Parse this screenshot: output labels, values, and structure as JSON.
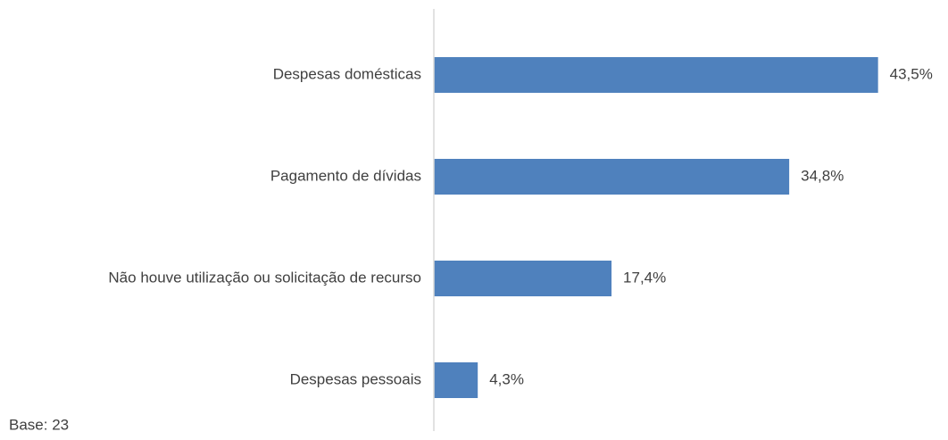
{
  "chart_data": {
    "type": "bar",
    "orientation": "horizontal",
    "categories": [
      "Despesas domésticas",
      "Pagamento de dívidas",
      "Não houve utilização ou solicitação de recurso",
      "Despesas pessoais"
    ],
    "values": [
      43.5,
      34.8,
      17.4,
      4.3
    ],
    "value_labels": [
      "43,5%",
      "34,8%",
      "17,4%",
      "4,3%"
    ],
    "color": "#4f81bd",
    "xlim": [
      0,
      50
    ],
    "note": "Base: 23"
  }
}
